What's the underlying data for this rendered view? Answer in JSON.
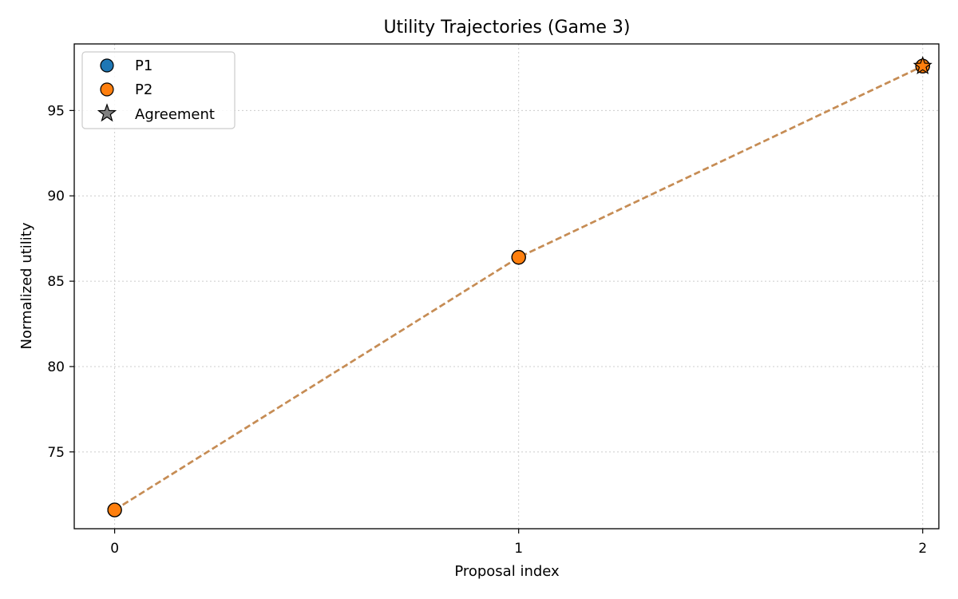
{
  "chart_data": {
    "type": "line",
    "title": "Utility Trajectories (Game 3)",
    "xlabel": "Proposal index",
    "ylabel": "Normalized utility",
    "xlim": [
      -0.1,
      2.04
    ],
    "ylim": [
      70.5,
      98.9
    ],
    "x_ticks": [
      0,
      1,
      2
    ],
    "y_ticks": [
      75,
      80,
      85,
      90,
      95
    ],
    "grid": true,
    "legend_position": "top-left",
    "series": [
      {
        "name": "P1",
        "color": "#1f77b4",
        "x": [
          0,
          1,
          2
        ],
        "y": [
          71.6,
          86.4,
          97.6
        ]
      },
      {
        "name": "P2",
        "color": "#ff7f0e",
        "x": [
          0,
          1,
          2
        ],
        "y": [
          71.6,
          86.4,
          97.6
        ]
      }
    ],
    "line_color": "#c48a50",
    "agreement": {
      "label": "Agreement",
      "x": 2,
      "y": 97.6,
      "color": "#808080"
    }
  }
}
